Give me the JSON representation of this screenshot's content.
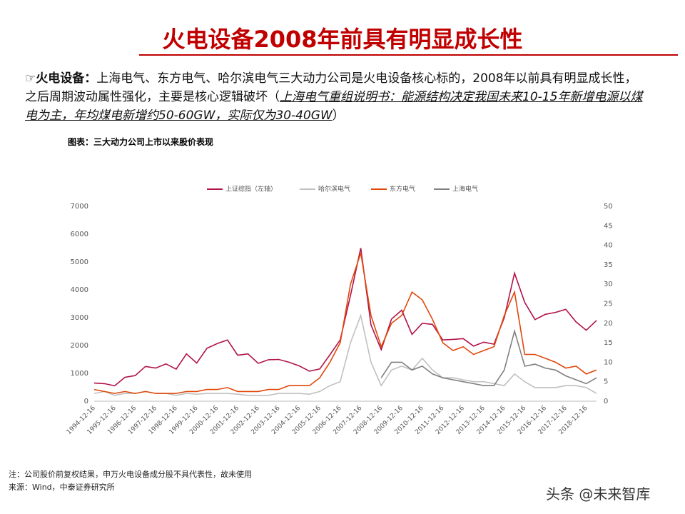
{
  "slide": {
    "title": "火电设备2008年前具有明显成长性",
    "bullet": {
      "symbol": "☞",
      "label": "火电设备：",
      "body": "上海电气、东方电气、哈尔滨电气三大动力公司是火电设备核心标的，2008年以前具有明显成长性，之后周期波动属性强化，主要是核心逻辑破坏（",
      "emphasis": "上海电气重组说明书：能源结构决定我国未来10-15年新增电源以煤电为主，年均煤电新增约50-60GW，实际仅为30-40GW",
      "close": "）"
    },
    "caption": "图表：三大动力公司上市以来股价表现",
    "notes": [
      "注：公司股价前复权结果，申万火电设备成分股不具代表性，故未使用",
      "来源：Wind，中泰证券研究所"
    ],
    "watermark": "头条 @未来智库"
  },
  "chart_data": {
    "type": "line",
    "legend": "top",
    "grid": false,
    "categories": [
      "1994-12-16",
      null,
      "1995-12-16",
      null,
      "1996-12-16",
      null,
      "1997-12-16",
      null,
      "1998-12-16",
      null,
      "1999-12-16",
      null,
      "2000-12-16",
      null,
      "2001-12-16",
      null,
      "2002-12-16",
      null,
      "2003-12-16",
      null,
      "2004-12-16",
      null,
      "2005-12-16",
      null,
      "2006-12-16",
      null,
      "2007-12-16",
      null,
      "2008-12-16",
      null,
      "2009-12-16",
      null,
      "2010-12-16",
      null,
      "2011-12-16",
      null,
      "2012-12-16",
      null,
      "2013-12-16",
      null,
      "2014-12-16",
      null,
      "2015-12-16",
      null,
      "2016-12-16",
      null,
      "2017-12-16",
      null,
      "2018-12-16",
      null
    ],
    "ylim": [
      0,
      7000
    ],
    "yticks": [
      0,
      1000,
      2000,
      3000,
      4000,
      5000,
      6000,
      7000
    ],
    "y2lim": [
      0,
      50
    ],
    "y2ticks": [
      0,
      5,
      10,
      15,
      20,
      25,
      30,
      35,
      40,
      45,
      50
    ],
    "series": [
      {
        "name": "上证综指（左轴）",
        "color": "#b0124b",
        "values": [
          650,
          630,
          555,
          860,
          920,
          1250,
          1190,
          1340,
          1150,
          1700,
          1370,
          1900,
          2070,
          2200,
          1650,
          1700,
          1360,
          1490,
          1500,
          1400,
          1270,
          1080,
          1160,
          1670,
          2200,
          3800,
          5500,
          2740,
          1850,
          2950,
          3270,
          2400,
          2800,
          2760,
          2200,
          2220,
          2250,
          1980,
          2120,
          2050,
          3000,
          4600,
          3550,
          2930,
          3120,
          3190,
          3300,
          2850,
          2550,
          2900
        ]
      },
      {
        "name": "哈尔滨电气",
        "color": "#c0c0c0",
        "axis": "y2",
        "values": [
          2,
          2.5,
          1.5,
          2,
          2,
          2.5,
          2,
          2,
          1.5,
          2,
          1.8,
          2,
          2,
          2,
          1.8,
          1.5,
          1.5,
          1.5,
          2,
          2,
          2,
          1.8,
          2.5,
          4,
          5,
          15,
          22,
          10,
          4,
          8,
          9,
          8,
          11,
          8,
          6,
          6,
          5.5,
          5,
          5,
          4.5,
          4,
          7,
          5,
          3.5,
          3.5,
          3.5,
          4,
          4,
          3.5,
          2
        ]
      },
      {
        "name": "东方电气",
        "color": "#e0480a",
        "axis": "y2",
        "values": [
          3,
          2.5,
          2,
          2.5,
          2,
          2.5,
          2,
          2,
          2,
          2.5,
          2.5,
          3,
          3,
          3.5,
          2.5,
          2.5,
          2.5,
          3,
          3,
          4,
          4,
          4,
          6,
          10,
          15,
          30,
          38,
          22,
          14,
          20,
          22,
          28,
          26,
          21,
          15,
          13,
          14,
          12,
          13,
          14,
          22,
          28,
          12,
          12,
          11,
          10,
          8.5,
          9,
          7,
          8
        ]
      },
      {
        "name": "上海电气",
        "color": "#7f7f7f",
        "axis": "y2",
        "values": [
          null,
          null,
          null,
          null,
          null,
          null,
          null,
          null,
          null,
          null,
          null,
          null,
          null,
          null,
          null,
          null,
          null,
          null,
          null,
          null,
          null,
          null,
          null,
          null,
          null,
          null,
          null,
          null,
          6,
          10,
          10,
          8,
          9,
          7,
          6,
          5.5,
          5,
          4.5,
          4,
          4,
          8,
          18,
          9,
          9.5,
          8.5,
          8,
          6.5,
          5.5,
          4.5,
          6
        ]
      }
    ]
  }
}
